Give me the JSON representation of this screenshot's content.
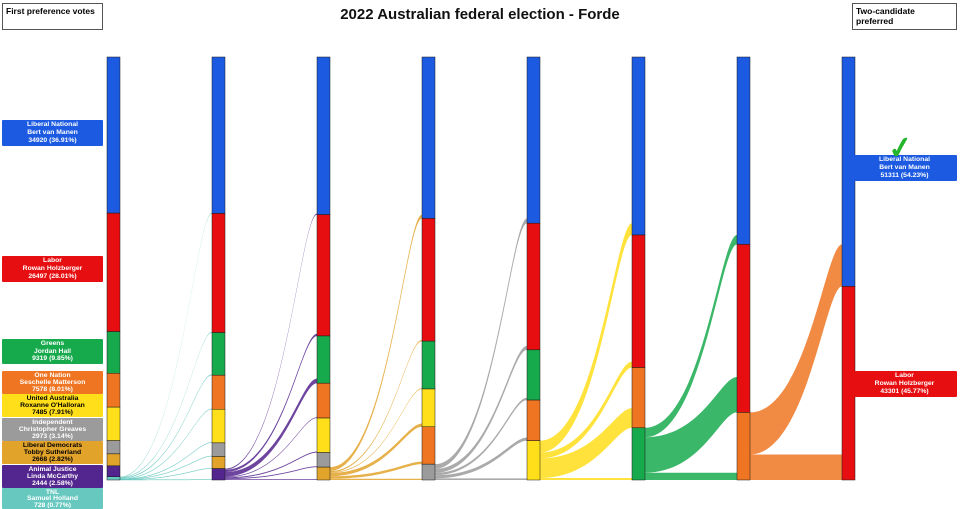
{
  "title": "2022 Australian federal election - Forde",
  "header": {
    "left_box": "First preference votes",
    "right_box": "Two-candidate preferred"
  },
  "winner_check_glyph": "✓",
  "winner_check_color": "#23b52b",
  "chart_data": {
    "type": "sankey",
    "title": "2022 Australian federal election - Forde",
    "unit": "votes",
    "total_formal_votes": 94612,
    "legend_position": "none",
    "parties": [
      {
        "id": "LNP",
        "name": "Liberal National",
        "candidate": "Bert van Manen",
        "color": "#1b5ae1",
        "text_color": "#ffffff"
      },
      {
        "id": "ALP",
        "name": "Labor",
        "candidate": "Rowan Holzberger",
        "color": "#e60e10",
        "text_color": "#ffffff"
      },
      {
        "id": "GRN",
        "name": "Greens",
        "candidate": "Jordan Hall",
        "color": "#17aa4d",
        "text_color": "#ffffff"
      },
      {
        "id": "ONP",
        "name": "One Nation",
        "candidate": "Seschelle Matterson",
        "color": "#ef7522",
        "text_color": "#ffffff"
      },
      {
        "id": "UAP",
        "name": "United Australia",
        "candidate": "Roxanne O'Halloran",
        "color": "#ffde1a",
        "text_color": "#000000"
      },
      {
        "id": "IND",
        "name": "Independent",
        "candidate": "Christopher Greaves",
        "color": "#9b9b9b",
        "text_color": "#ffffff"
      },
      {
        "id": "LDP",
        "name": "Liberal Democrats",
        "candidate": "Tobby Sutherland",
        "color": "#e2a32b",
        "text_color": "#000000"
      },
      {
        "id": "AJP",
        "name": "Animal Justice",
        "candidate": "Linda McCarthy",
        "color": "#53258e",
        "text_color": "#ffffff"
      },
      {
        "id": "TNL",
        "name": "TNL",
        "candidate": "Samuel Holland",
        "color": "#67c8c0",
        "text_color": "#ffffff"
      }
    ],
    "first_preferences": [
      {
        "party": "LNP",
        "votes": 34920,
        "label": "34920 (36.91%)"
      },
      {
        "party": "ALP",
        "votes": 26497,
        "label": "26497 (28.01%)"
      },
      {
        "party": "GRN",
        "votes": 9319,
        "label": "9319 (9.85%)"
      },
      {
        "party": "ONP",
        "votes": 7578,
        "label": "7578 (8.01%)"
      },
      {
        "party": "UAP",
        "votes": 7485,
        "label": "7485 (7.91%)"
      },
      {
        "party": "IND",
        "votes": 2973,
        "label": "2973 (3.14%)"
      },
      {
        "party": "LDP",
        "votes": 2668,
        "label": "2668 (2.82%)"
      },
      {
        "party": "AJP",
        "votes": 2444,
        "label": "2444 (2.58%)"
      },
      {
        "party": "TNL",
        "votes": 728,
        "label": "728 (0.77%)"
      }
    ],
    "two_candidate_preferred": [
      {
        "party": "LNP",
        "votes": 51311,
        "label": "51311 (54.23%)",
        "winner": true
      },
      {
        "party": "ALP",
        "votes": 43301,
        "label": "43301 (45.77%)",
        "winner": false
      }
    ],
    "elimination_order": [
      "TNL",
      "AJP",
      "LDP",
      "IND",
      "UAP",
      "GRN",
      "ONP"
    ],
    "stages_estimated_votes": [
      [
        {
          "party": "LNP",
          "votes": 34920
        },
        {
          "party": "ALP",
          "votes": 26497
        },
        {
          "party": "GRN",
          "votes": 9319
        },
        {
          "party": "ONP",
          "votes": 7578
        },
        {
          "party": "UAP",
          "votes": 7485
        },
        {
          "party": "IND",
          "votes": 2973
        },
        {
          "party": "LDP",
          "votes": 2668
        },
        {
          "party": "AJP",
          "votes": 2444
        },
        {
          "party": "TNL",
          "votes": 728
        }
      ],
      [
        {
          "party": "LNP",
          "votes": 34993
        },
        {
          "party": "ALP",
          "votes": 26643
        },
        {
          "party": "GRN",
          "votes": 9537
        },
        {
          "party": "ONP",
          "votes": 7614
        },
        {
          "party": "UAP",
          "votes": 7521
        },
        {
          "party": "IND",
          "votes": 3046
        },
        {
          "party": "LDP",
          "votes": 2704
        },
        {
          "party": "AJP",
          "votes": 2554
        }
      ],
      [
        {
          "party": "LNP",
          "votes": 35248
        },
        {
          "party": "ALP",
          "votes": 27154
        },
        {
          "party": "GRN",
          "votes": 10559
        },
        {
          "party": "ONP",
          "votes": 7793
        },
        {
          "party": "UAP",
          "votes": 7725
        },
        {
          "party": "IND",
          "votes": 3250
        },
        {
          "party": "LDP",
          "votes": 2883
        }
      ],
      [
        {
          "party": "LNP",
          "votes": 36113
        },
        {
          "party": "ALP",
          "votes": 27442
        },
        {
          "party": "GRN",
          "votes": 10703
        },
        {
          "party": "UAP",
          "votes": 8445
        },
        {
          "party": "ONP",
          "votes": 8370
        },
        {
          "party": "IND",
          "votes": 3539
        }
      ],
      [
        {
          "party": "LNP",
          "votes": 37175
        },
        {
          "party": "ALP",
          "votes": 28327
        },
        {
          "party": "GRN",
          "votes": 11234
        },
        {
          "party": "ONP",
          "votes": 9078
        },
        {
          "party": "UAP",
          "votes": 8798
        }
      ],
      [
        {
          "party": "LNP",
          "votes": 39814
        },
        {
          "party": "ALP",
          "votes": 29647
        },
        {
          "party": "ONP",
          "votes": 13477
        },
        {
          "party": "GRN",
          "votes": 11674
        }
      ],
      [
        {
          "party": "LNP",
          "votes": 41915
        },
        {
          "party": "ALP",
          "votes": 37585
        },
        {
          "party": "ONP",
          "votes": 15112
        }
      ],
      [
        {
          "party": "LNP",
          "votes": 51311
        },
        {
          "party": "ALP",
          "votes": 43301
        }
      ]
    ],
    "transfers_estimated": [
      {
        "from": "TNL",
        "to": [
          {
            "party": "LNP",
            "votes": 73
          },
          {
            "party": "ALP",
            "votes": 146
          },
          {
            "party": "GRN",
            "votes": 218
          },
          {
            "party": "ONP",
            "votes": 36
          },
          {
            "party": "UAP",
            "votes": 36
          },
          {
            "party": "IND",
            "votes": 73
          },
          {
            "party": "LDP",
            "votes": 36
          },
          {
            "party": "AJP",
            "votes": 110
          }
        ]
      },
      {
        "from": "AJP",
        "to": [
          {
            "party": "LNP",
            "votes": 255
          },
          {
            "party": "ALP",
            "votes": 511
          },
          {
            "party": "GRN",
            "votes": 1022
          },
          {
            "party": "ONP",
            "votes": 179
          },
          {
            "party": "UAP",
            "votes": 204
          },
          {
            "party": "IND",
            "votes": 204
          },
          {
            "party": "LDP",
            "votes": 179
          }
        ]
      },
      {
        "from": "LDP",
        "to": [
          {
            "party": "LNP",
            "votes": 865
          },
          {
            "party": "ALP",
            "votes": 288
          },
          {
            "party": "GRN",
            "votes": 144
          },
          {
            "party": "UAP",
            "votes": 720
          },
          {
            "party": "ONP",
            "votes": 577
          },
          {
            "party": "IND",
            "votes": 289
          }
        ]
      },
      {
        "from": "IND",
        "to": [
          {
            "party": "LNP",
            "votes": 1062
          },
          {
            "party": "ALP",
            "votes": 885
          },
          {
            "party": "GRN",
            "votes": 531
          },
          {
            "party": "ONP",
            "votes": 708
          },
          {
            "party": "UAP",
            "votes": 353
          }
        ]
      },
      {
        "from": "UAP",
        "to": [
          {
            "party": "LNP",
            "votes": 2639
          },
          {
            "party": "ALP",
            "votes": 1320
          },
          {
            "party": "ONP",
            "votes": 4399
          },
          {
            "party": "GRN",
            "votes": 440
          }
        ]
      },
      {
        "from": "GRN",
        "to": [
          {
            "party": "LNP",
            "votes": 2101
          },
          {
            "party": "ALP",
            "votes": 7938
          },
          {
            "party": "ONP",
            "votes": 1635
          }
        ]
      },
      {
        "from": "ONP",
        "to": [
          {
            "party": "LNP",
            "votes": 9396
          },
          {
            "party": "ALP",
            "votes": 5716
          }
        ]
      }
    ]
  }
}
